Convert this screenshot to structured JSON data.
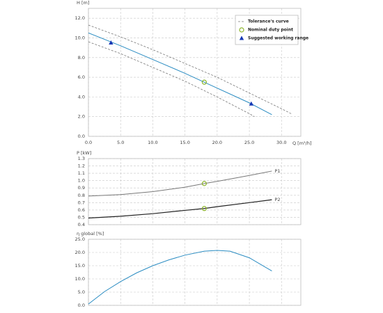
{
  "chart_data": [
    {
      "type": "line",
      "y_label": "H [m]",
      "x_label": "Q [m³/h]",
      "legend": "upper right",
      "grid": true,
      "xlim": [
        0,
        33
      ],
      "ylim": [
        0,
        13
      ],
      "xticks": [
        {
          "value": 0,
          "label": "0.0"
        },
        {
          "value": 5,
          "label": "5.0"
        },
        {
          "value": 10,
          "label": "10.0"
        },
        {
          "value": 15,
          "label": "15.0"
        },
        {
          "value": 20,
          "label": "20.0"
        },
        {
          "value": 25,
          "label": "25.0"
        },
        {
          "value": 30,
          "label": "30.0"
        }
      ],
      "yticks": [
        {
          "value": 0,
          "label": "0.0"
        },
        {
          "value": 2,
          "label": "2.0"
        },
        {
          "value": 4,
          "label": "4.0"
        },
        {
          "value": 6,
          "label": "6.0"
        },
        {
          "value": 8,
          "label": "8.0"
        },
        {
          "value": 10,
          "label": "10.0"
        },
        {
          "value": 12,
          "label": "12.0"
        }
      ],
      "series": [
        {
          "color": "#2a8cc2",
          "x": [
            0,
            5,
            10,
            15,
            18,
            20,
            25,
            28.5
          ],
          "values": [
            10.5,
            9.2,
            7.8,
            6.4,
            5.5,
            4.9,
            3.4,
            2.2
          ]
        },
        {
          "name": "Tolerance's curve",
          "color": "#777777",
          "dash": true,
          "x": [
            0,
            5,
            10,
            15,
            20,
            25,
            30,
            31.5
          ],
          "values": [
            11.3,
            10.1,
            8.8,
            7.4,
            6.0,
            4.4,
            2.8,
            2.3
          ]
        },
        {
          "color": "#777777",
          "dash": true,
          "x": [
            0,
            5,
            10,
            15,
            20,
            25,
            25.8
          ],
          "values": [
            9.6,
            8.4,
            7.0,
            5.6,
            4.0,
            2.3,
            2.0
          ]
        },
        {
          "name": "Nominal duty point",
          "color": "#8db52b",
          "marker": "circle",
          "x": [
            18
          ],
          "values": [
            5.5
          ]
        },
        {
          "name": "Suggested working range",
          "color": "#1638b5",
          "marker": "triangle",
          "x": [
            3.5,
            25.3
          ],
          "values": [
            9.5,
            3.3
          ]
        }
      ]
    },
    {
      "type": "line",
      "y_label": "P [kW]",
      "grid": true,
      "xlim": [
        0,
        33
      ],
      "ylim": [
        0.4,
        1.3
      ],
      "yticks": [
        0.4,
        0.5,
        0.6,
        0.7,
        0.8,
        0.9,
        {
          "value": 1,
          "label": "1.0"
        },
        1.1,
        1.2,
        1.3
      ],
      "series": [
        {
          "name": "P1",
          "color": "#777777",
          "x": [
            0,
            5,
            10,
            15,
            18,
            20,
            25,
            28.5
          ],
          "values": [
            0.79,
            0.81,
            0.85,
            0.91,
            0.96,
            0.99,
            1.07,
            1.13
          ]
        },
        {
          "name": "P2",
          "color": "#222222",
          "x": [
            0,
            5,
            10,
            15,
            18,
            20,
            25,
            28.5
          ],
          "values": [
            0.49,
            0.515,
            0.55,
            0.595,
            0.62,
            0.645,
            0.7,
            0.74
          ]
        },
        {
          "color": "#8db52b",
          "marker": "circle",
          "x": [
            18
          ],
          "values": [
            0.96
          ]
        },
        {
          "color": "#8db52b",
          "marker": "circle",
          "x": [
            18
          ],
          "values": [
            0.62
          ]
        }
      ]
    },
    {
      "type": "line",
      "y_label": "η global [%]",
      "grid": true,
      "xlim": [
        0,
        33
      ],
      "ylim": [
        0,
        25
      ],
      "yticks": [
        {
          "value": 0,
          "label": "0.0"
        },
        {
          "value": 5,
          "label": "5.0"
        },
        {
          "value": 10,
          "label": "10.0"
        },
        {
          "value": 15,
          "label": "15.0"
        },
        {
          "value": 20,
          "label": "20.0"
        },
        {
          "value": 25,
          "label": "25.0"
        }
      ],
      "series": [
        {
          "color": "#2a8cc2",
          "x": [
            0,
            2.5,
            5,
            7.5,
            10,
            12.5,
            15,
            18,
            20,
            22,
            25,
            28.5
          ],
          "values": [
            0.5,
            5.2,
            9,
            12.3,
            15,
            17.2,
            19,
            20.5,
            20.8,
            20.5,
            18,
            13
          ]
        }
      ]
    }
  ]
}
